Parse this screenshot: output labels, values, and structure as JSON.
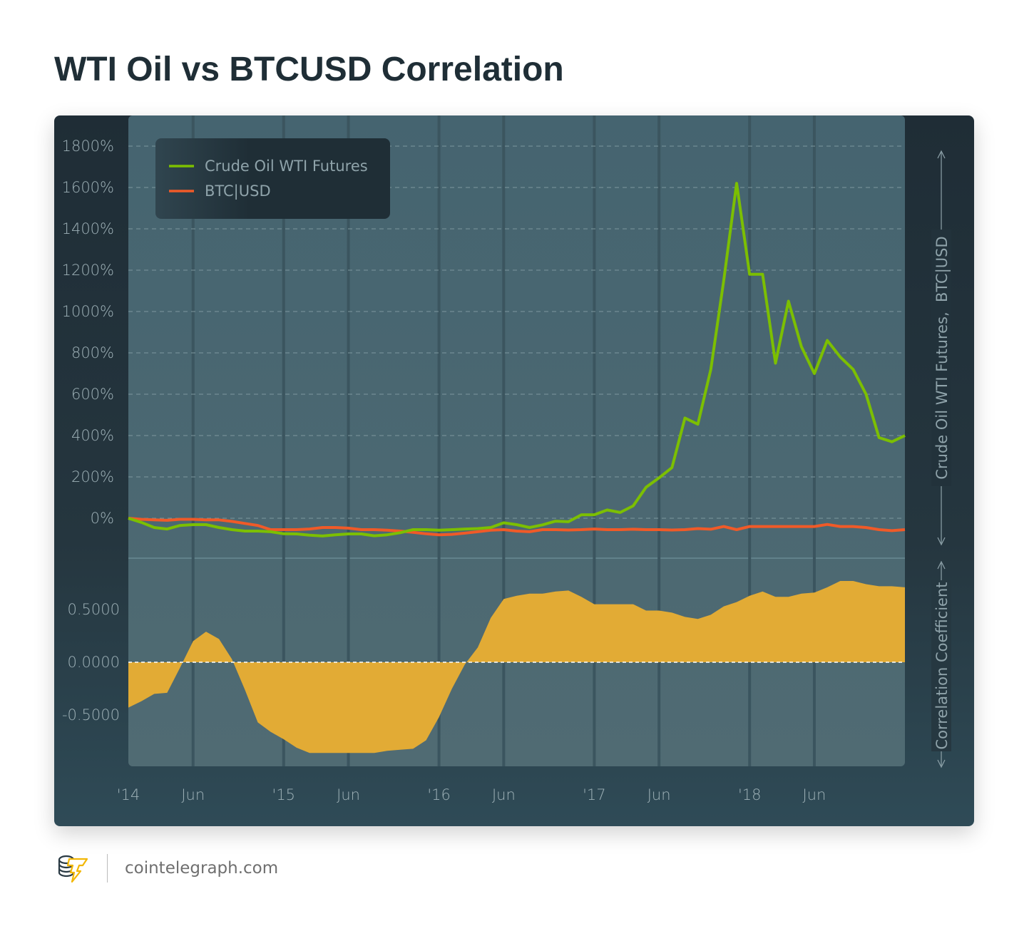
{
  "title": "WTI Oil vs BTCUSD Correlation",
  "footer": {
    "logo_text": "cointelegraph",
    "site": "cointelegraph.com"
  },
  "colors": {
    "oil": "#7cbf00",
    "btc": "#f05a28",
    "correlation": "#e2ab35",
    "plot_bg": "#4a6872"
  },
  "chart_data": [
    {
      "type": "line",
      "title": "",
      "ylabel": "Crude Oil WTI Futures,  BTC|USD",
      "ylim": [
        -200,
        1800
      ],
      "y_ticks": [
        "1800%",
        "1600%",
        "1400%",
        "1200%",
        "1000%",
        "800%",
        "600%",
        "400%",
        "200%",
        "0%"
      ],
      "x_ticks": [
        "'14",
        "Jun",
        "'15",
        "Jun",
        "'16",
        "Jun",
        "'17",
        "Jun",
        "'18",
        "Jun"
      ],
      "grid": true,
      "legend": "top-left",
      "x": [
        "2014-01",
        "2014-02",
        "2014-03",
        "2014-04",
        "2014-05",
        "2014-06",
        "2014-07",
        "2014-08",
        "2014-09",
        "2014-10",
        "2014-11",
        "2014-12",
        "2015-01",
        "2015-02",
        "2015-03",
        "2015-04",
        "2015-05",
        "2015-06",
        "2015-07",
        "2015-08",
        "2015-09",
        "2015-10",
        "2015-11",
        "2015-12",
        "2016-01",
        "2016-02",
        "2016-03",
        "2016-04",
        "2016-05",
        "2016-06",
        "2016-07",
        "2016-08",
        "2016-09",
        "2016-10",
        "2016-11",
        "2016-12",
        "2017-01",
        "2017-02",
        "2017-03",
        "2017-04",
        "2017-05",
        "2017-06",
        "2017-07",
        "2017-08",
        "2017-09",
        "2017-10",
        "2017-11",
        "2017-12",
        "2018-01",
        "2018-02",
        "2018-03",
        "2018-04",
        "2018-05",
        "2018-06",
        "2018-07",
        "2018-08",
        "2018-09",
        "2018-10",
        "2018-11",
        "2018-12",
        "2019-01"
      ],
      "series": [
        {
          "name": "Crude Oil WTI Futures",
          "unit": "%",
          "values": [
            0,
            -20,
            -45,
            -52,
            -35,
            -31,
            -31,
            -45,
            -55,
            -62,
            -62,
            -65,
            -75,
            -76,
            -82,
            -86,
            -80,
            -76,
            -76,
            -85,
            -80,
            -70,
            -55,
            -55,
            -58,
            -55,
            -52,
            -50,
            -45,
            -22,
            -31,
            -45,
            -32,
            -14,
            -17,
            17,
            17,
            40,
            28,
            60,
            150,
            195,
            245,
            485,
            455,
            720,
            1150,
            1620,
            1180,
            1180,
            750,
            1050,
            830,
            700,
            860,
            780,
            720,
            600,
            390,
            370,
            400
          ]
        },
        {
          "name": "BTC|USD",
          "unit": "%",
          "values": [
            0,
            -5,
            -8,
            -10,
            -5,
            -5,
            -8,
            -8,
            -15,
            -25,
            -35,
            -55,
            -55,
            -55,
            -52,
            -45,
            -45,
            -48,
            -55,
            -55,
            -58,
            -62,
            -68,
            -75,
            -80,
            -78,
            -72,
            -65,
            -58,
            -55,
            -62,
            -65,
            -55,
            -55,
            -57,
            -55,
            -52,
            -55,
            -55,
            -53,
            -55,
            -55,
            -57,
            -55,
            -50,
            -53,
            -40,
            -55,
            -40,
            -40,
            -40,
            -40,
            -40,
            -40,
            -30,
            -40,
            -40,
            -45,
            -55,
            -60,
            -55
          ]
        }
      ]
    },
    {
      "type": "area",
      "title": "",
      "ylabel": "Correlation Coefficient",
      "ylim": [
        -1,
        1
      ],
      "y_ticks": [
        "0.5000",
        "0.0000",
        "-0.5000"
      ],
      "x": "shared",
      "series": [
        {
          "name": "Correlation Coefficient",
          "values": [
            -0.43,
            -0.37,
            -0.3,
            -0.29,
            -0.05,
            0.2,
            0.29,
            0.22,
            0.03,
            -0.26,
            -0.57,
            -0.66,
            -0.73,
            -0.81,
            -0.86,
            -0.86,
            -0.86,
            -0.86,
            -0.86,
            -0.86,
            -0.84,
            -0.83,
            -0.82,
            -0.74,
            -0.52,
            -0.25,
            -0.02,
            0.14,
            0.42,
            0.6,
            0.63,
            0.65,
            0.65,
            0.67,
            0.68,
            0.62,
            0.55,
            0.55,
            0.55,
            0.55,
            0.49,
            0.49,
            0.47,
            0.43,
            0.41,
            0.45,
            0.53,
            0.57,
            0.63,
            0.67,
            0.62,
            0.62,
            0.65,
            0.66,
            0.71,
            0.77,
            0.77,
            0.74,
            0.72,
            0.72,
            0.71
          ]
        }
      ]
    }
  ]
}
